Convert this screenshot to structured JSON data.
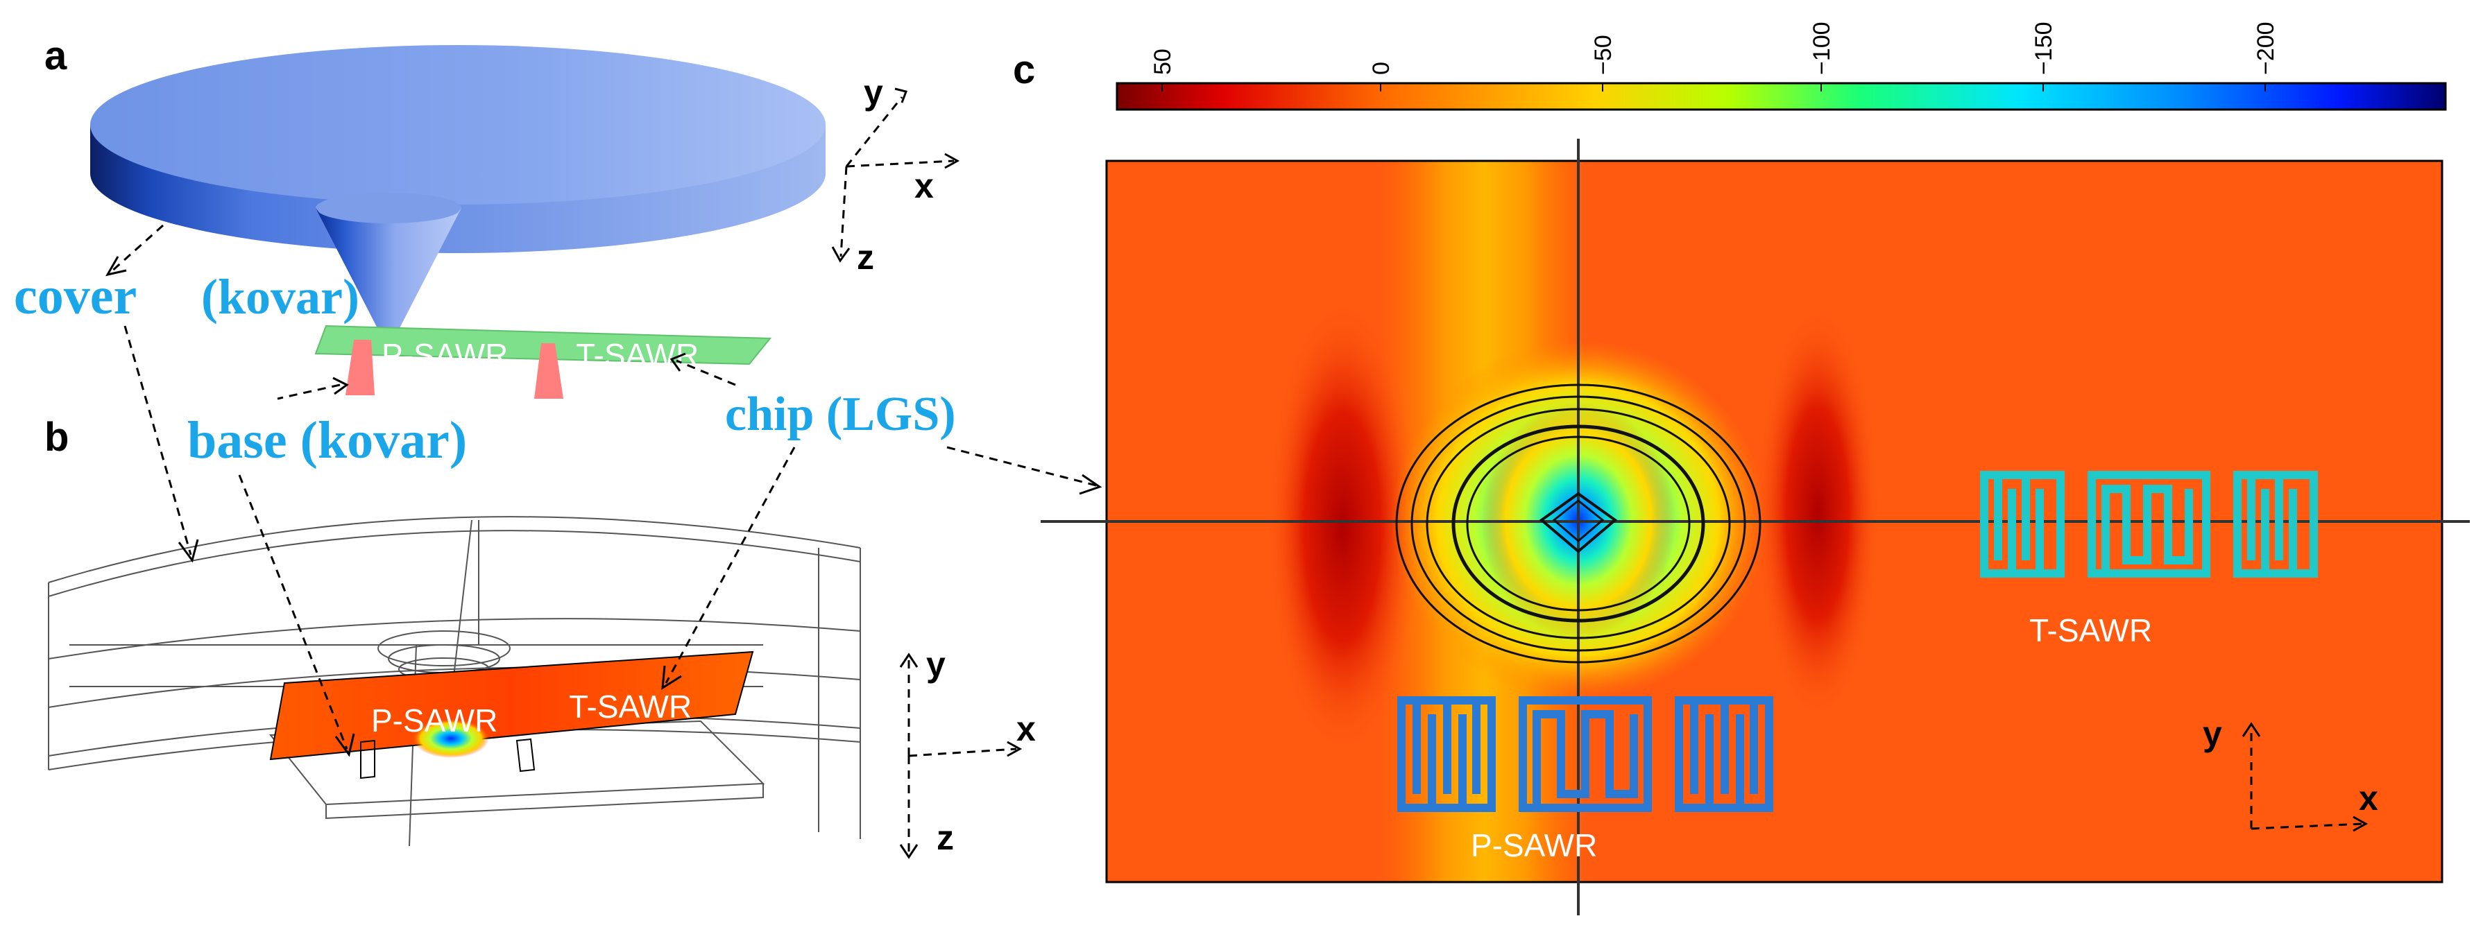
{
  "panels": {
    "a": "a",
    "b": "b",
    "c": "c"
  },
  "labels": {
    "cover": "cover",
    "cover_material": "(kovar)",
    "base": "base (kovar)",
    "chip": "chip (LGS)",
    "p_sawr": "P-SAWR",
    "t_sawr": "T-SAWR"
  },
  "axes": {
    "x": "x",
    "y": "y",
    "z": "z"
  },
  "colorbar": {
    "ticks": [
      "50",
      "0",
      "−50",
      "−100",
      "−150",
      "−200"
    ],
    "colormap": [
      "#7a0000",
      "#e00000",
      "#ff6a00",
      "#ffd200",
      "#b6ff00",
      "#19ff7a",
      "#00e5ff",
      "#008cff",
      "#0018ff",
      "#00006e"
    ]
  },
  "colors": {
    "label_blue": "#1aa6e8",
    "p_sawr_electrode": "#2b7ad4",
    "t_sawr_electrode": "#1fc9c9",
    "chip_green": "#7ee08a"
  }
}
